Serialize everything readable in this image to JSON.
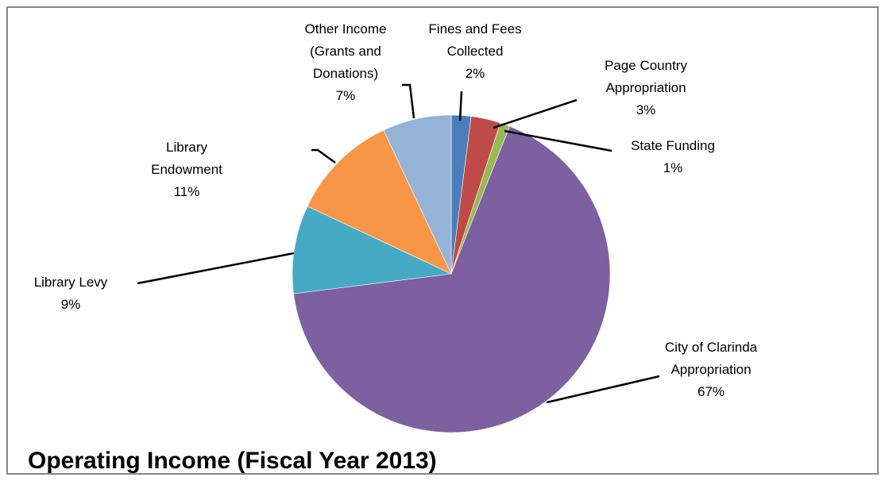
{
  "chart_data": {
    "type": "pie",
    "title": "Operating Income (Fiscal Year 2013)",
    "series": [
      {
        "label": "Fines and Fees Collected",
        "lines": [
          "Fines and Fees",
          "Collected"
        ],
        "percent_label": "2%",
        "value": 2,
        "color": "#4A7EBB"
      },
      {
        "label": "Page Country Appropriation",
        "lines": [
          "Page Country",
          "Appropriation"
        ],
        "percent_label": "3%",
        "value": 3,
        "color": "#BE4B48"
      },
      {
        "label": "State Funding",
        "lines": [
          "State Funding"
        ],
        "percent_label": "1%",
        "value": 1,
        "color": "#98B954"
      },
      {
        "label": "City of Clarinda Appropriation",
        "lines": [
          "City of Clarinda",
          "Appropriation"
        ],
        "percent_label": "67%",
        "value": 67,
        "color": "#7D60A0"
      },
      {
        "label": "Library Levy",
        "lines": [
          "Library Levy"
        ],
        "percent_label": "9%",
        "value": 9,
        "color": "#46AAC5"
      },
      {
        "label": "Library Endowment",
        "lines": [
          "Library",
          "Endowment"
        ],
        "percent_label": "11%",
        "value": 11,
        "color": "#F79646"
      },
      {
        "label": "Other Income (Grants and Donations)",
        "lines": [
          "Other Income",
          "(Grants and",
          "Donations)"
        ],
        "percent_label": "7%",
        "value": 7,
        "color": "#95B3D7"
      }
    ]
  }
}
